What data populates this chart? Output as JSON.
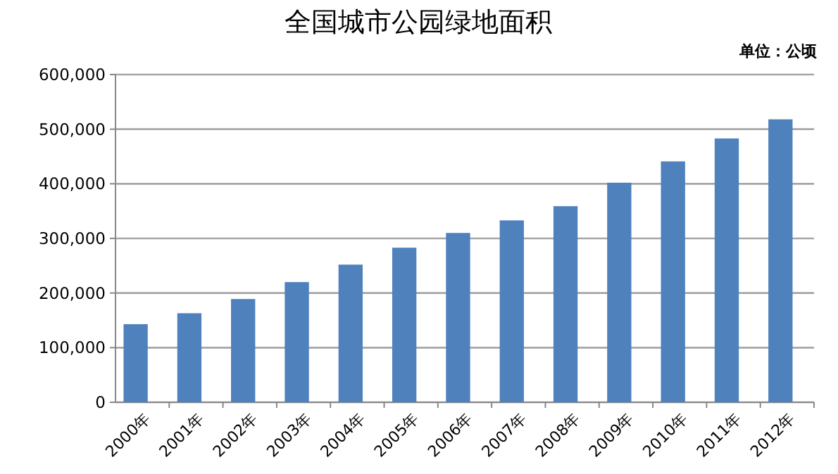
{
  "chart_data": {
    "type": "bar",
    "title": "全国城市公园绿地面积",
    "annotations": [
      "单位：公顷"
    ],
    "categories": [
      "2000年",
      "2001年",
      "2002年",
      "2003年",
      "2004年",
      "2005年",
      "2006年",
      "2007年",
      "2008年",
      "2009年",
      "2010年",
      "2011年",
      "2012年"
    ],
    "values": [
      143000,
      163000,
      189000,
      220000,
      252000,
      283000,
      310000,
      333000,
      359000,
      402000,
      441000,
      483000,
      518000
    ],
    "color": "#4f81bd",
    "grid": "y",
    "ylim": [
      0,
      600000
    ],
    "yticks": [
      {
        "value": 0,
        "label": "0"
      },
      {
        "value": 100000,
        "label": "100,000"
      },
      {
        "value": 200000,
        "label": "200,000"
      },
      {
        "value": 300000,
        "label": "300,000"
      },
      {
        "value": 400000,
        "label": "400,000"
      },
      {
        "value": 500000,
        "label": "500,000"
      },
      {
        "value": 600000,
        "label": "600,000"
      }
    ]
  }
}
